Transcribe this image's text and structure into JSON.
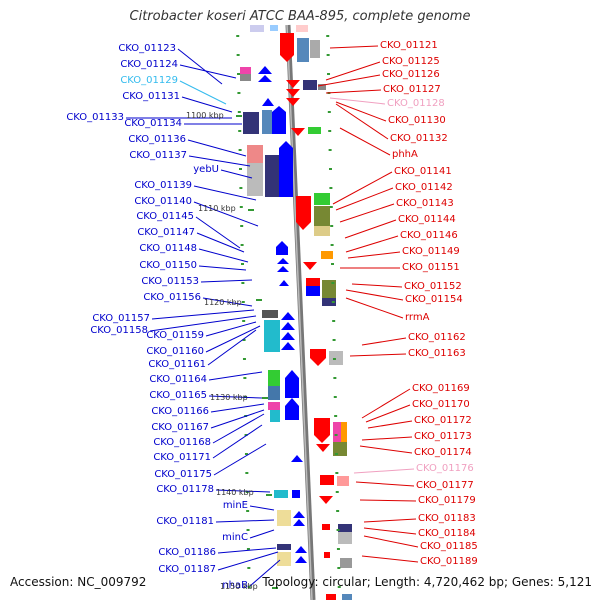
{
  "title": "Citrobacter koseri ATCC BAA-895, complete genome",
  "accession": "Accession: NC_009792",
  "topology": "Topology: circular; Length: 4,720,462 bp; Genes: 5,121",
  "colors": {
    "left_label": "#0000cc",
    "left_highlight": "#33bbee",
    "right_label": "#dd0000",
    "right_highlight": "#f0a0c0",
    "forward_gene": "#0000ff",
    "reverse_gene": "#ff0000",
    "backbone": "#888888",
    "tick": "#339933"
  },
  "kbp_marks": [
    "1100 kbp",
    "1110 kbp",
    "1120 kbp",
    "1130 kbp",
    "1140 kbp",
    "1150 kbp"
  ],
  "left_labels": [
    {
      "text": "CKO_01123",
      "highlight": false
    },
    {
      "text": "CKO_01124",
      "highlight": false
    },
    {
      "text": "CKO_01129",
      "highlight": true
    },
    {
      "text": "CKO_01131",
      "highlight": false
    },
    {
      "text": "CKO_01133",
      "highlight": false
    },
    {
      "text": "CKO_01134",
      "highlight": false
    },
    {
      "text": "CKO_01136",
      "highlight": false
    },
    {
      "text": "CKO_01137",
      "highlight": false
    },
    {
      "text": "yebU",
      "highlight": false
    },
    {
      "text": "CKO_01139",
      "highlight": false
    },
    {
      "text": "CKO_01140",
      "highlight": false
    },
    {
      "text": "CKO_01145",
      "highlight": false
    },
    {
      "text": "CKO_01147",
      "highlight": false
    },
    {
      "text": "CKO_01148",
      "highlight": false
    },
    {
      "text": "CKO_01150",
      "highlight": false
    },
    {
      "text": "CKO_01153",
      "highlight": false
    },
    {
      "text": "CKO_01156",
      "highlight": false
    },
    {
      "text": "CKO_01157",
      "highlight": false
    },
    {
      "text": "CKO_01158",
      "highlight": false
    },
    {
      "text": "CKO_01159",
      "highlight": false
    },
    {
      "text": "CKO_01160",
      "highlight": false
    },
    {
      "text": "CKO_01161",
      "highlight": false
    },
    {
      "text": "CKO_01164",
      "highlight": false
    },
    {
      "text": "CKO_01165",
      "highlight": false
    },
    {
      "text": "CKO_01166",
      "highlight": false
    },
    {
      "text": "CKO_01167",
      "highlight": false
    },
    {
      "text": "CKO_01168",
      "highlight": false
    },
    {
      "text": "CKO_01171",
      "highlight": false
    },
    {
      "text": "CKO_01175",
      "highlight": false
    },
    {
      "text": "CKO_01178",
      "highlight": false
    },
    {
      "text": "minE",
      "highlight": false
    },
    {
      "text": "CKO_01181",
      "highlight": false
    },
    {
      "text": "minC",
      "highlight": false
    },
    {
      "text": "CKO_01186",
      "highlight": false
    },
    {
      "text": "CKO_01187",
      "highlight": false
    },
    {
      "text": "nhaB",
      "highlight": false
    }
  ],
  "right_labels": [
    {
      "text": "CKO_01121",
      "highlight": false
    },
    {
      "text": "CKO_01125",
      "highlight": false
    },
    {
      "text": "CKO_01126",
      "highlight": false
    },
    {
      "text": "CKO_01127",
      "highlight": false
    },
    {
      "text": "CKO_01128",
      "highlight": true
    },
    {
      "text": "CKO_01130",
      "highlight": false
    },
    {
      "text": "CKO_01132",
      "highlight": false
    },
    {
      "text": "phhA",
      "highlight": false
    },
    {
      "text": "CKO_01141",
      "highlight": false
    },
    {
      "text": "CKO_01142",
      "highlight": false
    },
    {
      "text": "CKO_01143",
      "highlight": false
    },
    {
      "text": "CKO_01144",
      "highlight": false
    },
    {
      "text": "CKO_01146",
      "highlight": false
    },
    {
      "text": "CKO_01149",
      "highlight": false
    },
    {
      "text": "CKO_01151",
      "highlight": false
    },
    {
      "text": "CKO_01152",
      "highlight": false
    },
    {
      "text": "CKO_01154",
      "highlight": false
    },
    {
      "text": "rrmA",
      "highlight": false
    },
    {
      "text": "CKO_01162",
      "highlight": false
    },
    {
      "text": "CKO_01163",
      "highlight": false
    },
    {
      "text": "CKO_01169",
      "highlight": false
    },
    {
      "text": "CKO_01170",
      "highlight": false
    },
    {
      "text": "CKO_01172",
      "highlight": false
    },
    {
      "text": "CKO_01173",
      "highlight": false
    },
    {
      "text": "CKO_01174",
      "highlight": false
    },
    {
      "text": "CKO_01176",
      "highlight": true
    },
    {
      "text": "CKO_01177",
      "highlight": false
    },
    {
      "text": "CKO_01179",
      "highlight": false
    },
    {
      "text": "CKO_01183",
      "highlight": false
    },
    {
      "text": "CKO_01184",
      "highlight": false
    },
    {
      "text": "CKO_01185",
      "highlight": false
    },
    {
      "text": "CKO_01189",
      "highlight": false
    }
  ]
}
